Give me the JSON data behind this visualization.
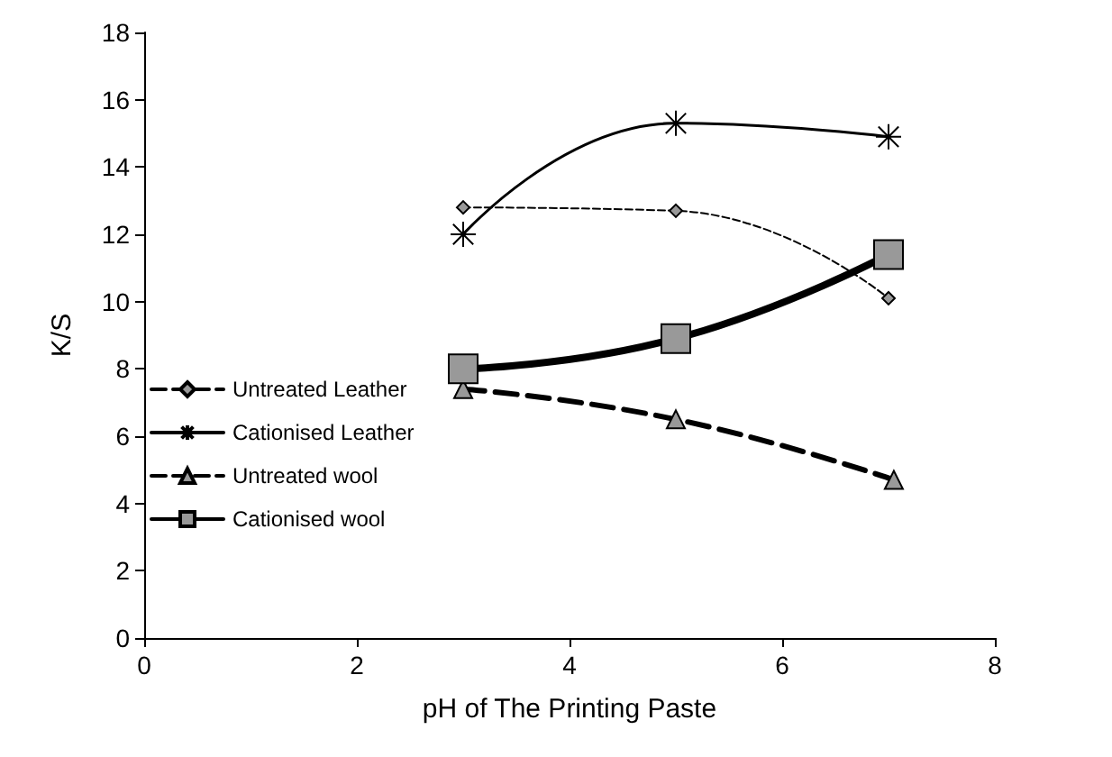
{
  "chart_data": {
    "type": "line",
    "xlabel": "pH of The Printing Paste",
    "ylabel": "K/S",
    "xlim": [
      0,
      8
    ],
    "xticks": [
      0,
      2,
      4,
      6,
      8
    ],
    "ylim": [
      0,
      18
    ],
    "yticks": [
      0,
      2,
      4,
      6,
      8,
      10,
      12,
      14,
      16,
      18
    ],
    "grid": false,
    "legend": "bottom left",
    "series": [
      {
        "name": "Untreated Leather",
        "color": "#000000",
        "marker": "diamond",
        "line_style": "dashed",
        "x": [
          3,
          5,
          7
        ],
        "values": [
          12.8,
          12.7,
          10.1
        ]
      },
      {
        "name": "Cationised Leather",
        "color": "#000000",
        "marker": "cross",
        "line_style": "solid",
        "x": [
          3,
          5,
          7
        ],
        "values": [
          12.0,
          15.3,
          14.9
        ]
      },
      {
        "name": "Untreated wool",
        "color": "#000000",
        "marker": "triangle",
        "line_style": "dashed",
        "x": [
          3,
          5,
          7.05
        ],
        "values": [
          7.4,
          6.5,
          4.7
        ]
      },
      {
        "name": "Cationised wool",
        "color": "#000000",
        "marker": "square",
        "line_style": "solid",
        "x": [
          3,
          5,
          7
        ],
        "values": [
          8.0,
          8.9,
          11.4
        ]
      }
    ]
  }
}
